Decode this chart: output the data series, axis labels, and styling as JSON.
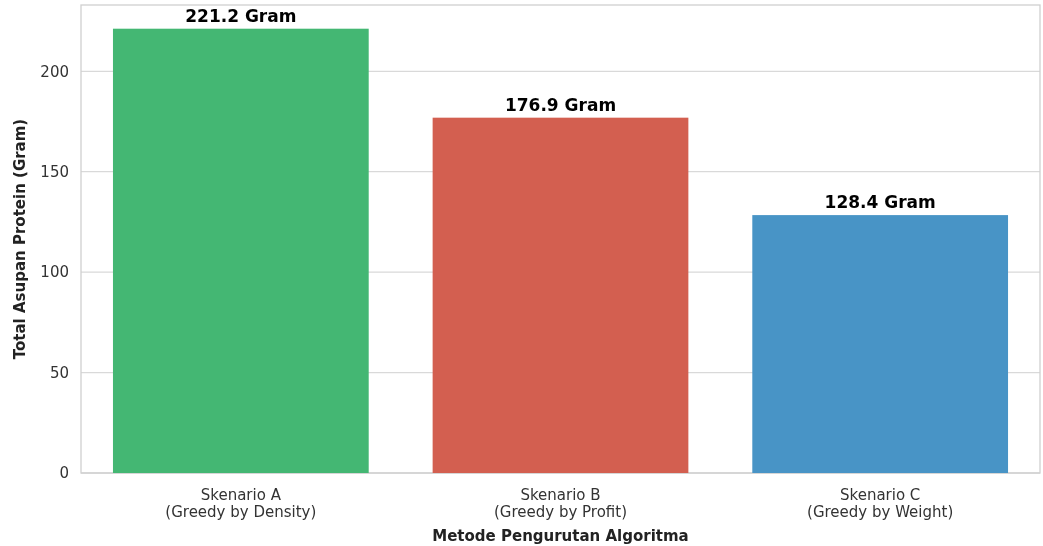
{
  "chart_data": {
    "type": "bar",
    "xlabel": "Metode Pengurutan Algoritma",
    "ylabel": "Total Asupan Protein (Gram)",
    "categories": [
      "Skenario A\n(Greedy by Density)",
      "Skenario B\n(Greedy by Profit)",
      "Skenario C\n(Greedy by Weight)"
    ],
    "values": [
      221.2,
      176.9,
      128.4
    ],
    "colors": [
      "#44b773",
      "#d35f50",
      "#4894c6"
    ],
    "value_labels": [
      "221.2 Gram",
      "176.9 Gram",
      "128.4 Gram"
    ],
    "ylim": [
      0,
      233
    ],
    "yticks": [
      0,
      50,
      100,
      150,
      200
    ],
    "grid": "y"
  }
}
